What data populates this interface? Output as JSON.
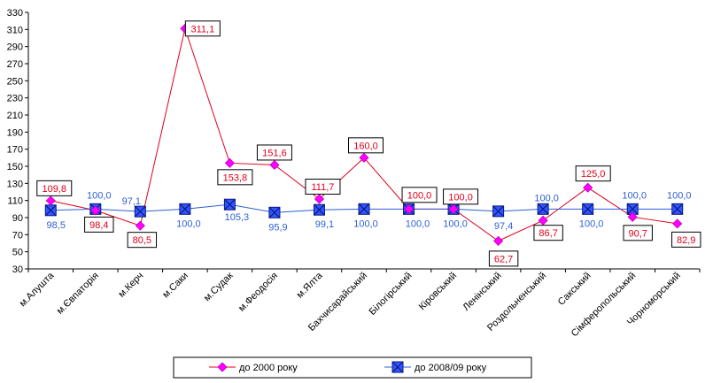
{
  "chart_data": {
    "type": "line",
    "categories": [
      "м.Алушта",
      "м.Євпаторія",
      "м.Керч",
      "м.Саки",
      "м.Судак",
      "м.Феодосія",
      "м.Ялта",
      "Бахчисарайський",
      "Білогірський",
      "Кіровський",
      "Ленінський",
      "Роздольненський",
      "Сакський",
      "Сімферопольський",
      "Чорноморський"
    ],
    "series": [
      {
        "name": "до  2000 року",
        "color": "#e0001b",
        "marker_color": "#ff00ff",
        "marker": "diamond",
        "values": [
          109.8,
          98.4,
          80.5,
          311.1,
          153.8,
          151.6,
          111.7,
          160.0,
          100.0,
          100.0,
          62.7,
          86.7,
          125.0,
          90.7,
          82.9
        ],
        "labels": [
          "109,8",
          "98,4",
          "80,5",
          "311,1",
          "153,8",
          "151,6",
          "111,7",
          "160,0",
          "100,0",
          "100,0",
          "62,7",
          "86,7",
          "125,0",
          "90,7",
          "82,9"
        ]
      },
      {
        "name": "до 2008/09 року",
        "color": "#2e5fd6",
        "marker_color": "#3355ff",
        "marker": "x-square",
        "values": [
          98.5,
          100.0,
          97.1,
          100.0,
          105.3,
          95.9,
          99.1,
          100.0,
          100.0,
          100.0,
          97.4,
          100.0,
          100.0,
          100.0,
          100.0
        ],
        "labels": [
          "98,5",
          "100,0",
          "97,1",
          "100,0",
          "105,3",
          "95,9",
          "99,1",
          "100,0",
          "100,0",
          "100,0",
          "97,4",
          "100,0",
          "100,0",
          "100,0",
          "100,0"
        ]
      }
    ],
    "y_ticks": [
      "30",
      "50",
      "70",
      "90",
      "110",
      "130",
      "150",
      "170",
      "190",
      "210",
      "230",
      "250",
      "270",
      "290",
      "310",
      "330"
    ],
    "ylim": [
      30,
      330
    ],
    "grid": false,
    "legend_position": "bottom",
    "title": "",
    "xlabel": "",
    "ylabel": ""
  }
}
